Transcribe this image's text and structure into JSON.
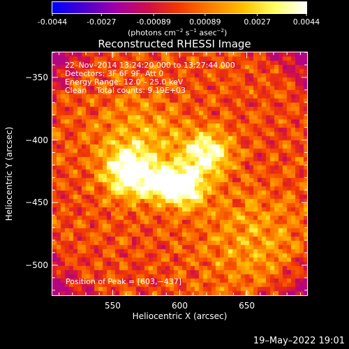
{
  "colorbar": {
    "tick_labels": [
      "-0.0044",
      "-0.0027",
      "-0.00089",
      "0.00089",
      "0.0027",
      "0.0044"
    ],
    "ticks": [
      -0.0044,
      -0.0027,
      -0.00089,
      0.00089,
      0.0027,
      0.0044
    ],
    "range": [
      -0.0044,
      0.0044
    ],
    "unit_label": "(photons cm",
    "unit_exp1": "−2",
    "unit_mid": " s",
    "unit_exp2": "−1",
    "unit_end": " asec",
    "unit_exp3": "−2",
    "unit_close": ")",
    "gradient_stops": [
      "#0000ff",
      "#4b00d0",
      "#a100a8",
      "#d10f4a",
      "#f23b00",
      "#ff7f00",
      "#ffc000",
      "#ffff60",
      "#ffffff"
    ]
  },
  "chart_data": {
    "type": "heatmap",
    "title": "Reconstructed RHESSI Image",
    "xlabel": "Heliocentric X (arcsec)",
    "ylabel": "Heliocentric Y (arcsec)",
    "xlim": [
      505,
      695
    ],
    "ylim": [
      -524,
      -330
    ],
    "x_ticks": [
      550,
      600,
      650
    ],
    "y_ticks": [
      -350,
      -400,
      -450,
      -500
    ],
    "x_tick_labels": [
      "550",
      "600",
      "650"
    ],
    "y_tick_labels": [
      "−350",
      "−400",
      "−450",
      "−500"
    ],
    "colormap": "rhessi-red-yellow",
    "peak_position": [
      603,
      -437
    ],
    "sources": [
      {
        "x": 603,
        "y": -437,
        "sigma": 11,
        "amp": 1.0
      },
      {
        "x": 563,
        "y": -426,
        "sigma": 13,
        "amp": 0.92
      },
      {
        "x": 620,
        "y": -410,
        "sigma": 12,
        "amp": 0.82
      },
      {
        "x": 585,
        "y": -435,
        "sigma": 9,
        "amp": 0.6
      },
      {
        "x": 570,
        "y": -400,
        "sigma": 25,
        "amp": 0.35
      },
      {
        "x": 655,
        "y": -480,
        "sigma": 28,
        "amp": 0.3
      }
    ]
  },
  "annotations": {
    "line1": "22–Nov–2014 13:24:20.000 to 13:27:44.000",
    "line2": "Detectors: 3F 6F 9F, Att 0",
    "line3": "Energy Range: 12.0 – 25.0 keV",
    "line4_a": "Clean",
    "line4_b": "Total counts: 9.19E+03",
    "peak_text": "Position of Peak = [603,−437]"
  },
  "footer": {
    "timestamp": "19–May–2022 19:01"
  }
}
